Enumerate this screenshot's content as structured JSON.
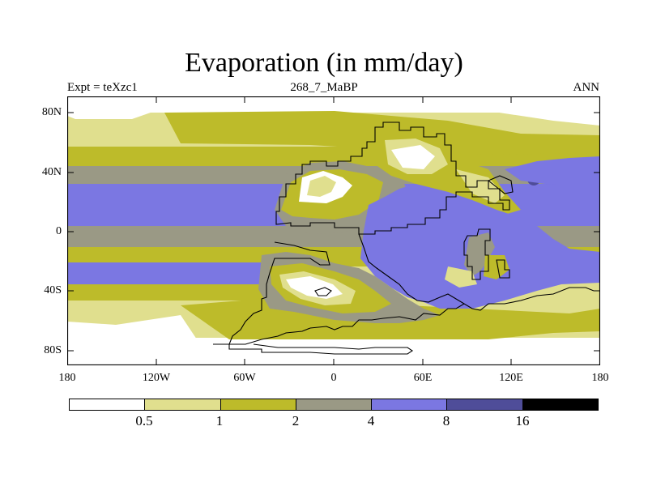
{
  "title": "Evaporation (in mm/day)",
  "subtitle_left": "Expt = teXzc1",
  "subtitle_center": "268_7_MaBP",
  "subtitle_right": "ANN",
  "y_axis_labels": [
    "80N",
    "40N",
    "0",
    "40S",
    "80S"
  ],
  "x_axis_labels": [
    "180",
    "120W",
    "60W",
    "0",
    "60E",
    "120E",
    "180"
  ],
  "colorbar": {
    "colors": [
      "#ffffff",
      "#e0df8e",
      "#bdbb2a",
      "#9a9985",
      "#7b77e2",
      "#4f4d99",
      "#000000"
    ],
    "labels": [
      "0.5",
      "1",
      "2",
      "4",
      "8",
      "16"
    ]
  },
  "map_colors": {
    "white": "#ffffff",
    "light": "#e0df8e",
    "olive": "#bdbb2a",
    "gray": "#9a9985",
    "blue": "#7b77e2",
    "dark": "#4f4d99"
  }
}
